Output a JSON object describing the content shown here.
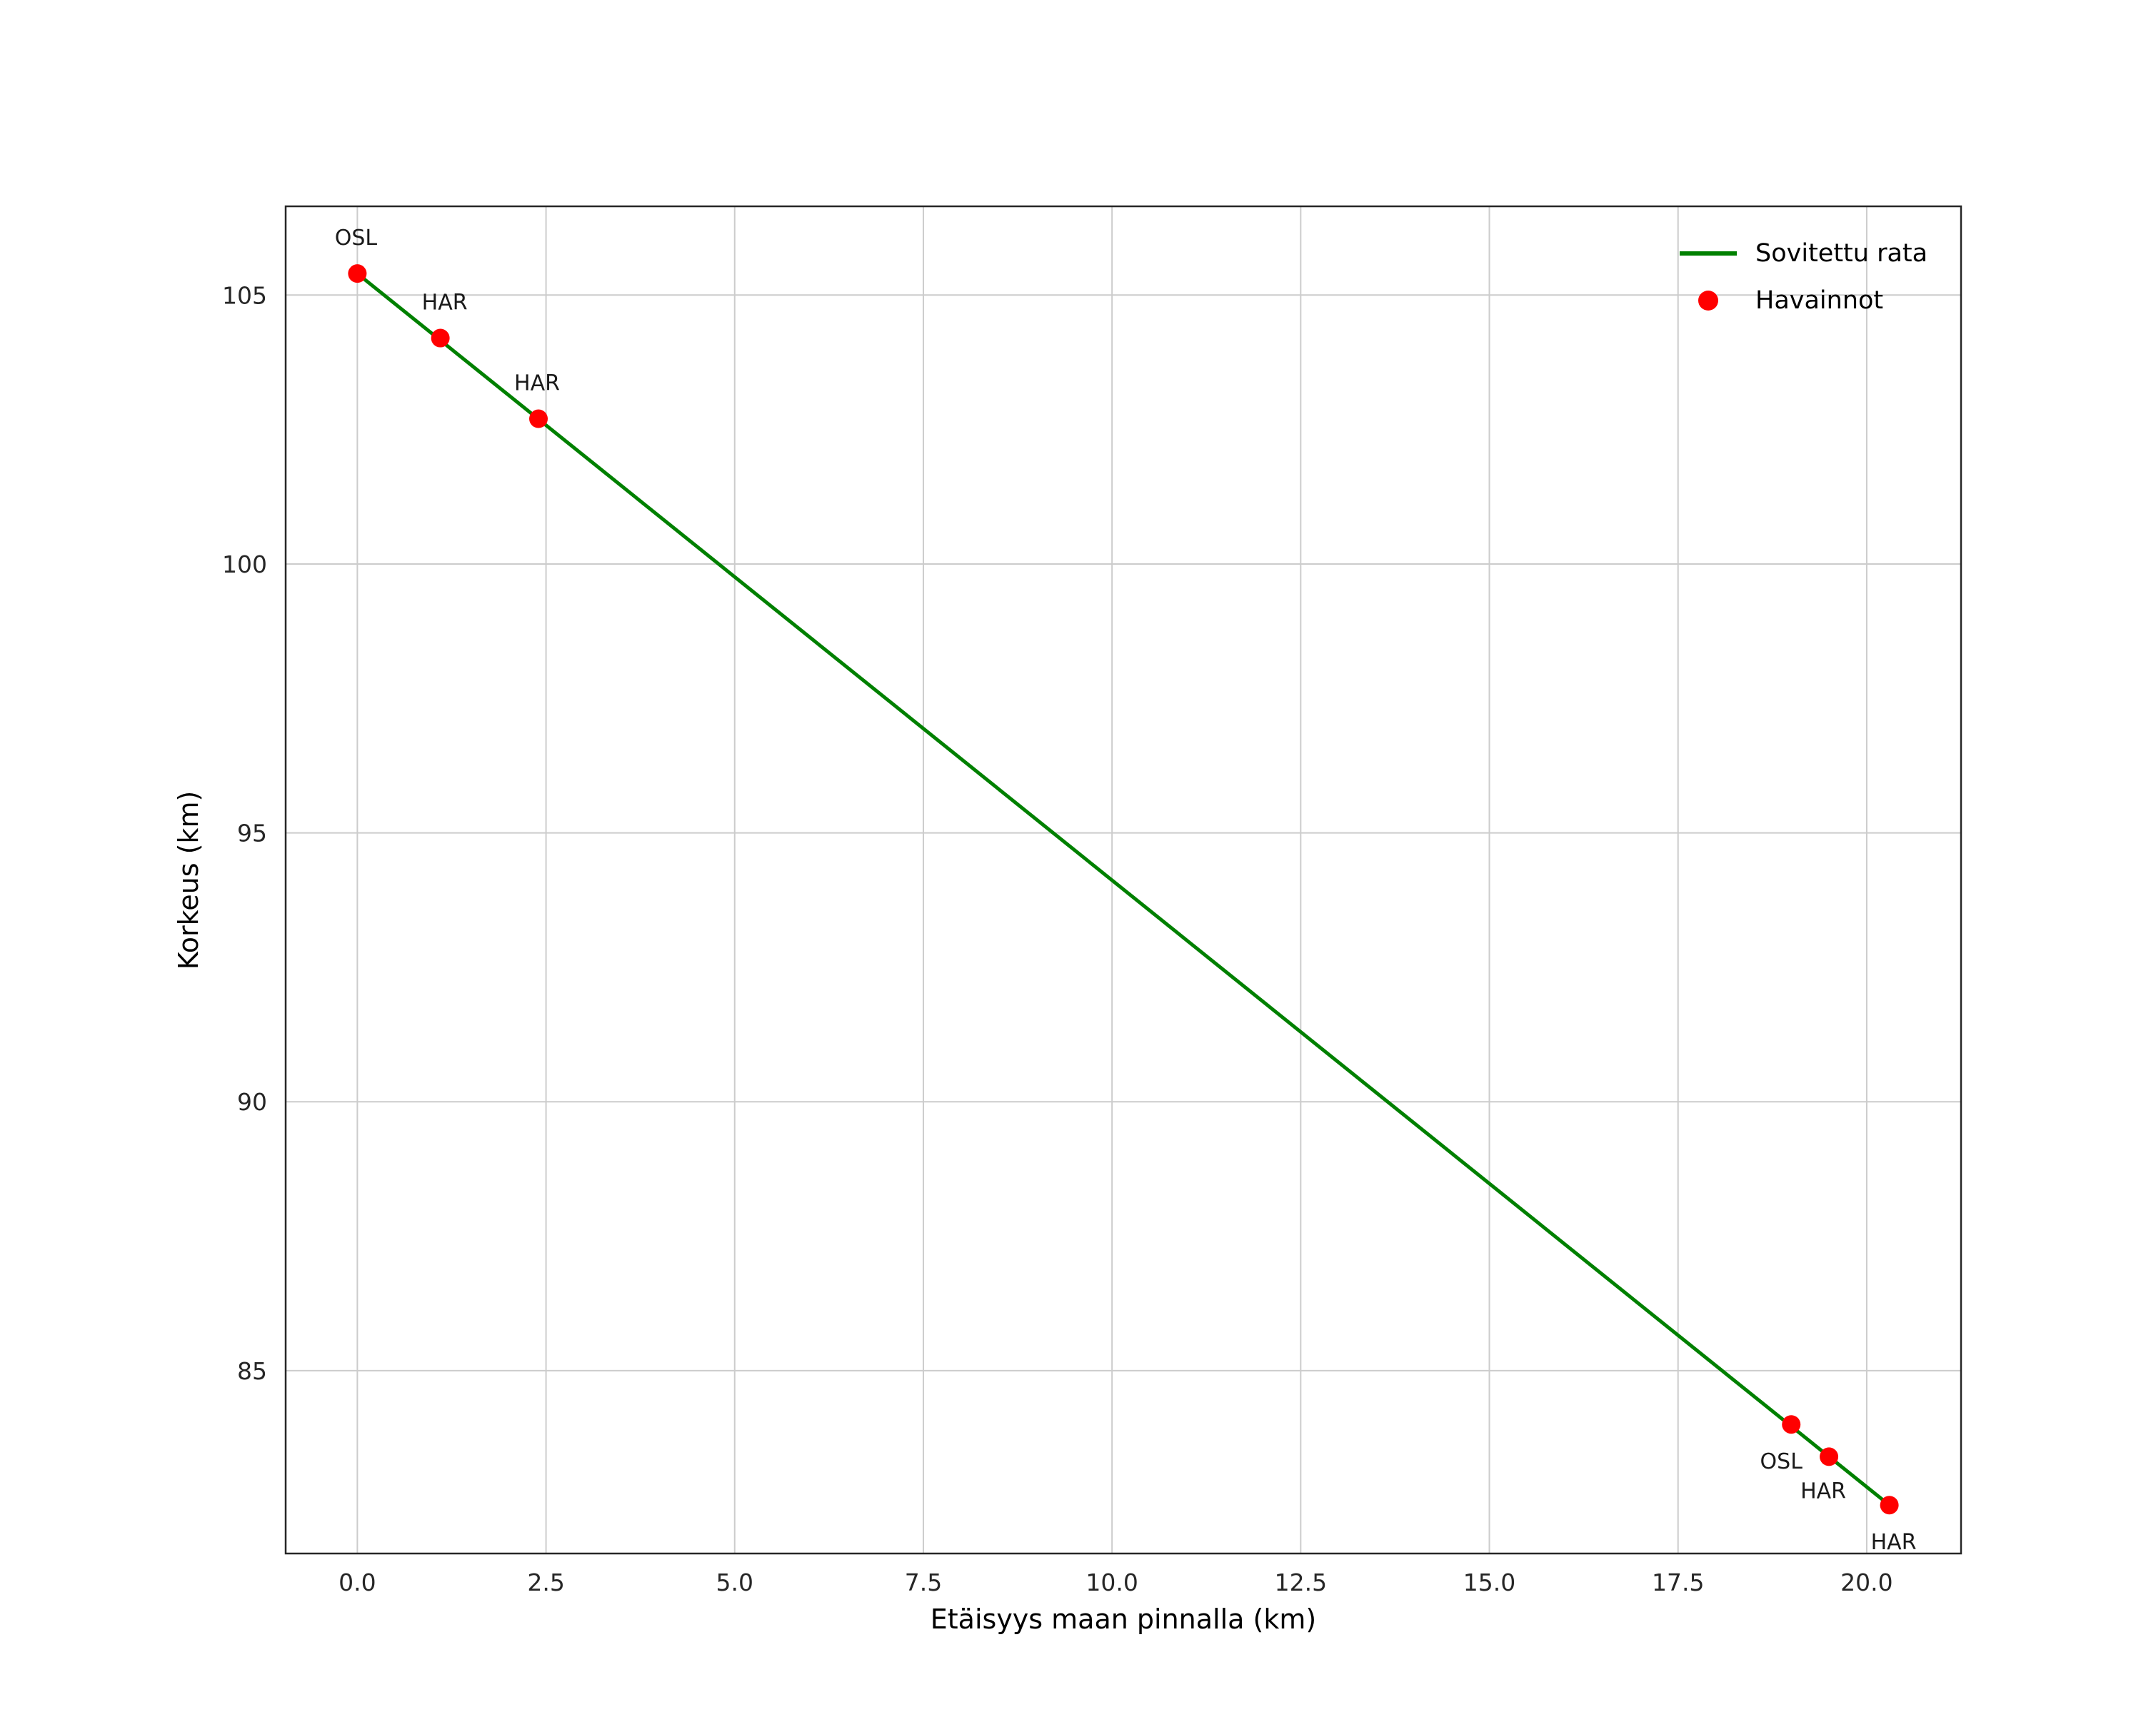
{
  "figure": {
    "background": "#ffffff",
    "grid_color": "#cccccc",
    "spine_color": "#262626",
    "tick_label_color": "#262626"
  },
  "chart_data": {
    "type": "scatter",
    "title": "",
    "xlabel": "Etäisyys maan pinnalla (km)",
    "ylabel": "Korkeus (km)",
    "xlim": [
      -0.95,
      21.25
    ],
    "ylim": [
      81.6,
      106.65
    ],
    "xticks": [
      0.0,
      2.5,
      5.0,
      7.5,
      10.0,
      12.5,
      15.0,
      17.5,
      20.0
    ],
    "xtick_labels": [
      "0.0",
      "2.5",
      "5.0",
      "7.5",
      "10.0",
      "12.5",
      "15.0",
      "17.5",
      "20.0"
    ],
    "yticks": [
      85,
      90,
      95,
      100,
      105
    ],
    "ytick_labels": [
      "85",
      "90",
      "95",
      "100",
      "105"
    ],
    "grid": true,
    "legend": {
      "position": "upper-right",
      "entries": [
        {
          "label": "Sovitettu rata",
          "type": "line",
          "color": "#008000"
        },
        {
          "label": "Havainnot",
          "type": "point",
          "color": "#ff0000"
        }
      ]
    },
    "series": [
      {
        "name": "Sovitettu rata",
        "type": "line",
        "color": "#008000",
        "x": [
          0.0,
          20.3
        ],
        "y": [
          105.4,
          82.5
        ]
      },
      {
        "name": "Havainnot",
        "type": "scatter",
        "color": "#ff0000",
        "marker_radius": 13,
        "points": [
          {
            "x": 0.0,
            "y": 105.4,
            "label": "OSL",
            "label_dx": -2,
            "label_dy": -40
          },
          {
            "x": 1.1,
            "y": 104.2,
            "label": "HAR",
            "label_dx": 6,
            "label_dy": -40
          },
          {
            "x": 2.4,
            "y": 102.7,
            "label": "HAR",
            "label_dx": -2,
            "label_dy": -40
          },
          {
            "x": 19.0,
            "y": 84.0,
            "label": "OSL",
            "label_dx": -14,
            "label_dy": 62
          },
          {
            "x": 19.5,
            "y": 83.4,
            "label": "HAR",
            "label_dx": -8,
            "label_dy": 58
          },
          {
            "x": 20.3,
            "y": 82.5,
            "label": "HAR",
            "label_dx": 6,
            "label_dy": 62
          }
        ]
      }
    ]
  }
}
